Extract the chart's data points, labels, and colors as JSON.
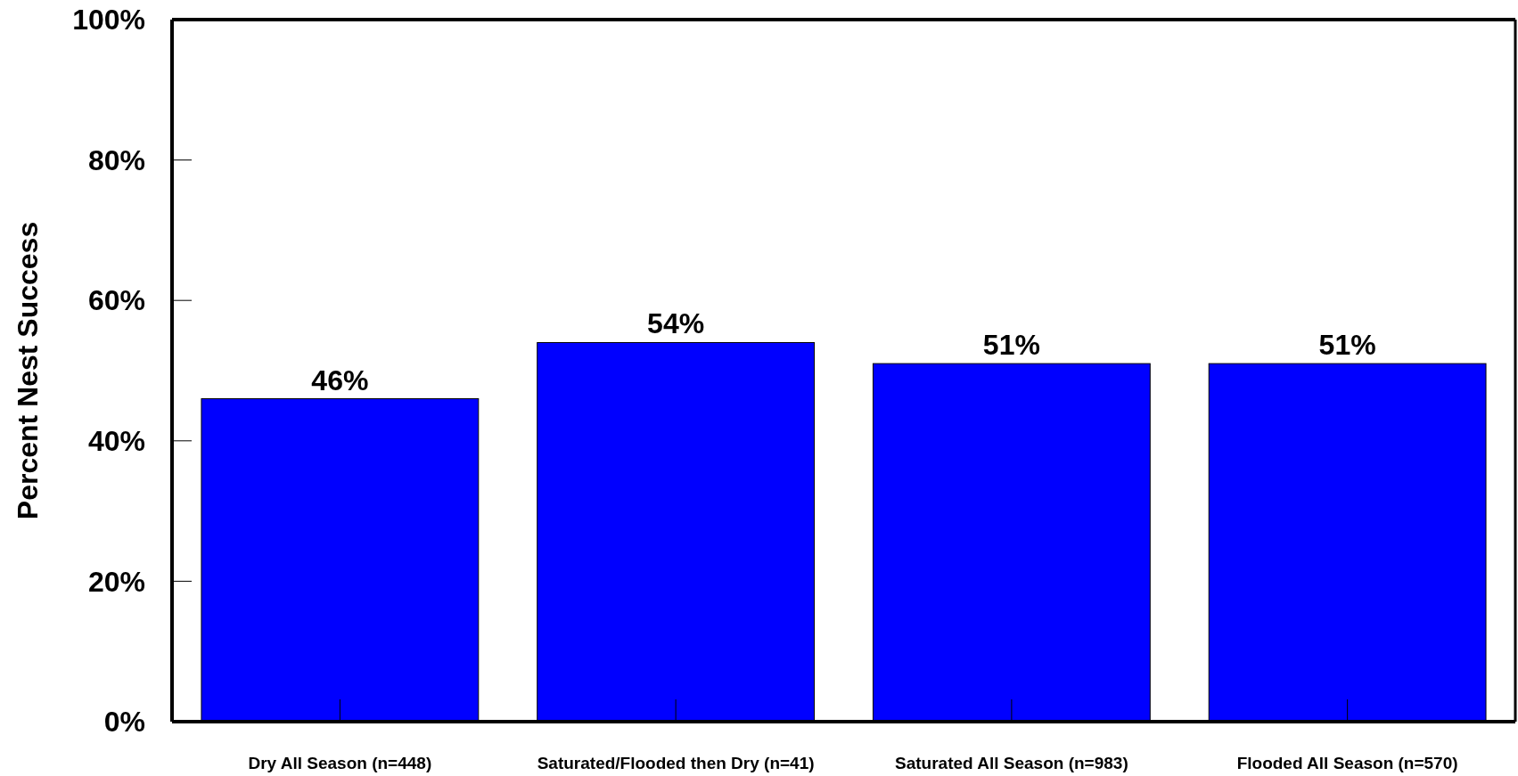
{
  "chart_data": {
    "type": "bar",
    "ylabel": "Percent Nest Success",
    "categories": [
      "Dry All Season (n=448)",
      "Saturated/Flooded then Dry (n=41)",
      "Saturated All Season (n=983)",
      "Flooded All Season (n=570)"
    ],
    "values": [
      46,
      54,
      51,
      51
    ],
    "value_labels": [
      "46%",
      "54%",
      "51%",
      "51%"
    ],
    "color": "#0000ff",
    "ylim": [
      0,
      100
    ],
    "yticks": [
      {
        "value": 0,
        "label": "0%"
      },
      {
        "value": 20,
        "label": "20%"
      },
      {
        "value": 40,
        "label": "40%"
      },
      {
        "value": 60,
        "label": "60%"
      },
      {
        "value": 80,
        "label": "80%"
      },
      {
        "value": 100,
        "label": "100%"
      }
    ],
    "grid": false
  }
}
